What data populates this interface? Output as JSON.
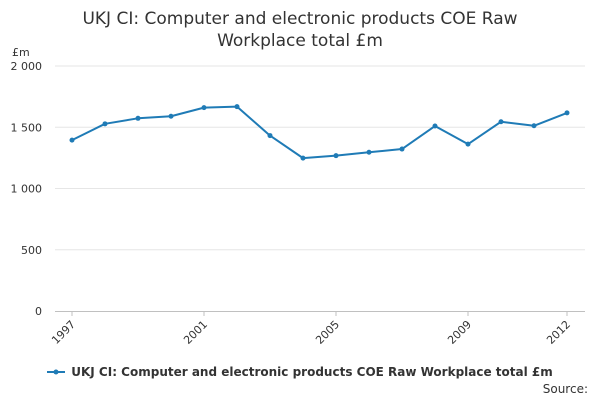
{
  "chart_data": {
    "type": "line",
    "title_line1": "UKJ CI: Computer and electronic products COE Raw",
    "title_line2": "Workplace total £m",
    "ylabel": "£m",
    "ylim": [
      0,
      2000
    ],
    "y_ticks": [
      0,
      500,
      1000,
      1500,
      2000
    ],
    "y_tick_labels": [
      "0",
      "500",
      "1 000",
      "1 500",
      "2 000"
    ],
    "x": [
      1997,
      1998,
      1999,
      2000,
      2001,
      2002,
      2003,
      2004,
      2005,
      2006,
      2007,
      2008,
      2009,
      2010,
      2011,
      2012
    ],
    "x_tick_labels": [
      "1997",
      "2001",
      "2005",
      "2009",
      "2012"
    ],
    "grid": true,
    "legend_position": "bottom",
    "series": [
      {
        "name": "UKJ CI: Computer and electronic products COE Raw Workplace total £m",
        "color": "#1f7bb6",
        "values": [
          1395,
          1528,
          1573,
          1590,
          1660,
          1668,
          1432,
          1248,
          1268,
          1296,
          1322,
          1510,
          1362,
          1545,
          1512,
          1617
        ]
      }
    ]
  },
  "source_label": "Source:"
}
